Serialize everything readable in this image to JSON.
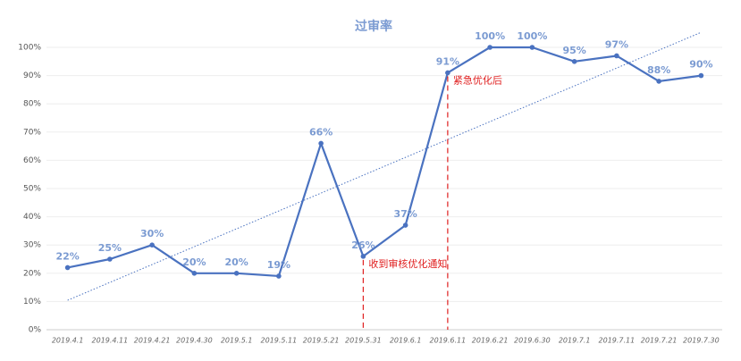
{
  "chart_data": {
    "type": "line",
    "title": "过审率",
    "categories": [
      "2019.4.1",
      "2019.4.11",
      "2019.4.21",
      "2019.4.30",
      "2019.5.1",
      "2019.5.11",
      "2019.5.21",
      "2019.5.31",
      "2019.6.1",
      "2019.6.11",
      "2019.6.21",
      "2019.6.30",
      "2019.7.1",
      "2019.7.11",
      "2019.7.21",
      "2019.7.30"
    ],
    "series": [
      {
        "name": "过审率",
        "color": "#4a72c0",
        "values": [
          22,
          25,
          30,
          20,
          20,
          19,
          66,
          26,
          37,
          91,
          100,
          100,
          95,
          97,
          88,
          90
        ],
        "value_labels": [
          "22%",
          "25%",
          "30%",
          "20%",
          "20%",
          "19%",
          "66%",
          "26%",
          "37%",
          "91%",
          "100%",
          "100%",
          "95%",
          "97%",
          "88%",
          "90%"
        ]
      }
    ],
    "ylim": [
      0,
      100
    ],
    "yticks": [
      {
        "value": 0,
        "label": "0%"
      },
      {
        "value": 10,
        "label": "10%"
      },
      {
        "value": 20,
        "label": "20%"
      },
      {
        "value": 30,
        "label": "30%"
      },
      {
        "value": 40,
        "label": "40%"
      },
      {
        "value": 50,
        "label": "50%"
      },
      {
        "value": 60,
        "label": "60%"
      },
      {
        "value": 70,
        "label": "70%"
      },
      {
        "value": 80,
        "label": "80%"
      },
      {
        "value": 90,
        "label": "90%"
      },
      {
        "value": 100,
        "label": "100%"
      }
    ],
    "grid": true,
    "trendline": true,
    "annotations": [
      {
        "text": "收到审核优化通知",
        "category": "2019.5.31",
        "color": "#e02020"
      },
      {
        "text": "紧急优化后",
        "category": "2019.6.11",
        "color": "#e02020"
      }
    ]
  }
}
